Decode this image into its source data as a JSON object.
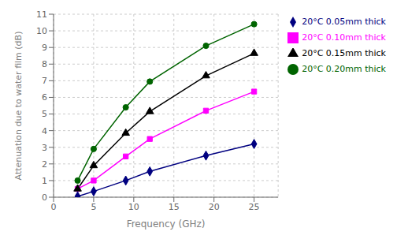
{
  "chart_data": {
    "type": "line",
    "x_label": "Frequency (GHz)",
    "y_label": "Attenuation due to water film (dB)",
    "x": [
      3,
      5,
      9,
      12,
      19,
      25
    ],
    "series": [
      {
        "name": "20°C 0.05mm thick",
        "color": "#000080",
        "marker": "diamond",
        "values": [
          0.05,
          0.35,
          1.0,
          1.55,
          2.5,
          3.2
        ]
      },
      {
        "name": "20°C 0.10mm thick",
        "color": "#FF00FF",
        "marker": "square",
        "values": [
          0.5,
          1.0,
          2.45,
          3.5,
          5.2,
          6.35
        ]
      },
      {
        "name": "20°C 0.15mm thick",
        "color": "#000000",
        "marker": "triangle",
        "values": [
          0.5,
          1.9,
          3.85,
          5.15,
          7.3,
          8.65
        ]
      },
      {
        "name": "20°C 0.20mm thick",
        "color": "#006400",
        "marker": "circle",
        "values": [
          1.0,
          2.9,
          5.4,
          6.95,
          9.1,
          10.4
        ]
      }
    ],
    "xlim": [
      0,
      28
    ],
    "xticks": [
      0,
      5,
      10,
      15,
      20,
      25
    ],
    "ylim": [
      0,
      11
    ],
    "yticks": [
      0,
      1,
      2,
      3,
      4,
      5,
      6,
      7,
      8,
      9,
      10,
      11
    ],
    "grid": true,
    "legend": "right"
  }
}
